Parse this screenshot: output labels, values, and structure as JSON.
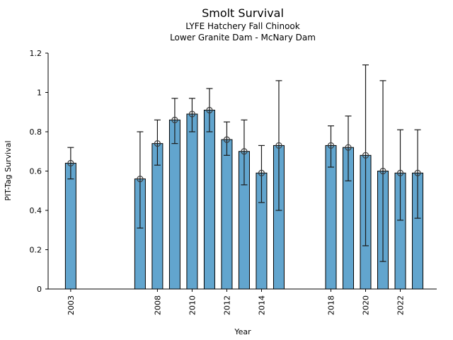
{
  "chart_data": {
    "type": "bar",
    "title": "Smolt Survival",
    "subtitle1": "LYFE Hatchery Fall Chinook",
    "subtitle2": "Lower Granite Dam - McNary Dam",
    "xlabel": "Year",
    "ylabel": "PIT-Tag Survival",
    "ylim": [
      0,
      1.2
    ],
    "xlim": [
      2001.7,
      2024.1
    ],
    "yticks": [
      0,
      0.2,
      0.4,
      0.6,
      0.8,
      1,
      1.2
    ],
    "ytick_labels": [
      "0",
      "0.2",
      "0.4",
      "0.6",
      "0.8",
      "1",
      "1.2"
    ],
    "xticks": [
      2003,
      2008,
      2010,
      2012,
      2014,
      2018,
      2020,
      2022
    ],
    "grid": "off",
    "legend": "none",
    "marker": "open-circle",
    "bar_color": "#62A5CE",
    "bar_edge_color": "#000000",
    "error_bar_color": "#1a1a1a",
    "marker_edge_color": "#3b3b3b",
    "series": [
      {
        "name": "PIT-Tag Survival",
        "x": [
          2003,
          2007,
          2008,
          2009,
          2010,
          2011,
          2012,
          2013,
          2014,
          2015,
          2018,
          2019,
          2020,
          2021,
          2022,
          2023
        ],
        "values": [
          0.64,
          0.56,
          0.74,
          0.86,
          0.89,
          0.91,
          0.76,
          0.7,
          0.59,
          0.73,
          0.73,
          0.72,
          0.68,
          0.6,
          0.59,
          0.59
        ],
        "err_low": [
          0.56,
          0.31,
          0.63,
          0.74,
          0.8,
          0.8,
          0.68,
          0.53,
          0.44,
          0.4,
          0.62,
          0.55,
          0.22,
          0.14,
          0.35,
          0.36
        ],
        "err_high": [
          0.72,
          0.8,
          0.86,
          0.97,
          0.97,
          1.02,
          0.85,
          0.86,
          0.73,
          1.06,
          0.83,
          0.88,
          1.14,
          1.06,
          0.81,
          0.81
        ]
      }
    ]
  }
}
